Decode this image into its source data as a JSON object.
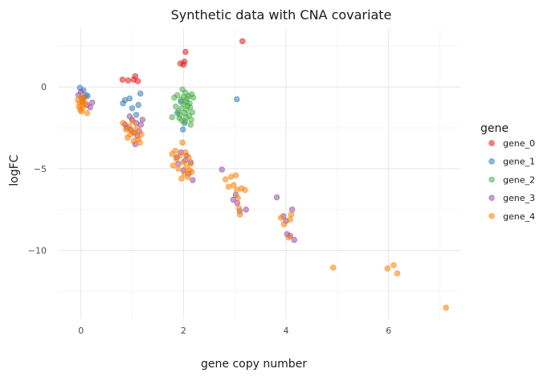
{
  "chart_data": {
    "type": "scatter",
    "title": "Synthetic data with CNA covariate",
    "xlabel": "gene copy number",
    "ylabel": "logFC",
    "xlim": [
      -0.45,
      7.4
    ],
    "ylim": [
      -14.2,
      3.6
    ],
    "x_ticks": [
      0,
      2,
      4,
      6
    ],
    "y_ticks": [
      0,
      -5,
      -10
    ],
    "grid": true,
    "legend": {
      "title": "gene",
      "position": "right"
    },
    "series": [
      {
        "name": "gene_0",
        "color": "#e41a1c",
        "points": [
          [
            0.81,
            0.45
          ],
          [
            0.92,
            0.4
          ],
          [
            1.03,
            0.45
          ],
          [
            1.06,
            0.66
          ],
          [
            1.11,
            0.36
          ],
          [
            1.94,
            1.44
          ],
          [
            2.0,
            1.37
          ],
          [
            2.02,
            1.55
          ],
          [
            2.04,
            2.15
          ],
          [
            3.15,
            2.8
          ]
        ]
      },
      {
        "name": "gene_1",
        "color": "#377eb8",
        "points": [
          [
            -0.02,
            -0.05
          ],
          [
            0.05,
            -0.2
          ],
          [
            0.1,
            -0.5
          ],
          [
            0.02,
            -0.7
          ],
          [
            0.13,
            -0.55
          ],
          [
            0.82,
            -1.0
          ],
          [
            0.86,
            -0.8
          ],
          [
            0.95,
            -0.7
          ],
          [
            1.0,
            -1.3
          ],
          [
            1.08,
            -1.7
          ],
          [
            1.12,
            -1.1
          ],
          [
            1.16,
            -0.4
          ],
          [
            1.88,
            -1.6
          ],
          [
            1.95,
            -0.9
          ],
          [
            1.99,
            -2.6
          ],
          [
            2.02,
            -2.2
          ],
          [
            3.04,
            -0.75
          ]
        ]
      },
      {
        "name": "gene_2",
        "color": "#4daf4a",
        "points": [
          [
            1.78,
            -1.85
          ],
          [
            1.82,
            -0.65
          ],
          [
            1.85,
            -1.2
          ],
          [
            1.88,
            -0.5
          ],
          [
            1.9,
            -1.5
          ],
          [
            1.92,
            -1.9
          ],
          [
            1.95,
            -0.8
          ],
          [
            1.96,
            -1.3
          ],
          [
            1.98,
            -0.15
          ],
          [
            2.0,
            -0.6
          ],
          [
            2.01,
            -1.05
          ],
          [
            2.02,
            -1.6
          ],
          [
            2.03,
            -2.1
          ],
          [
            2.04,
            -0.35
          ],
          [
            2.05,
            -0.9
          ],
          [
            2.06,
            -1.4
          ],
          [
            2.07,
            -0.7
          ],
          [
            2.08,
            -1.15
          ],
          [
            2.1,
            -0.55
          ],
          [
            2.11,
            -1.75
          ],
          [
            2.12,
            -1.0
          ],
          [
            2.13,
            -1.25
          ],
          [
            2.14,
            -2.3
          ],
          [
            2.15,
            -2.0
          ],
          [
            2.16,
            -0.45
          ],
          [
            2.17,
            -1.55
          ],
          [
            2.19,
            -0.65
          ],
          [
            1.93,
            -1.7
          ],
          [
            1.97,
            -2.05
          ],
          [
            2.05,
            -1.85
          ]
        ]
      },
      {
        "name": "gene_3",
        "color": "#984ea3",
        "points": [
          [
            -0.05,
            -0.5
          ],
          [
            0.0,
            -0.3
          ],
          [
            0.03,
            -0.9
          ],
          [
            0.06,
            -0.65
          ],
          [
            0.12,
            -1.1
          ],
          [
            0.18,
            -1.25
          ],
          [
            0.22,
            -0.95
          ],
          [
            0.86,
            -2.3
          ],
          [
            0.9,
            -2.5
          ],
          [
            0.95,
            -1.8
          ],
          [
            0.97,
            -2.6
          ],
          [
            1.0,
            -2.0
          ],
          [
            1.03,
            -2.8
          ],
          [
            1.06,
            -3.5
          ],
          [
            1.08,
            -2.2
          ],
          [
            1.1,
            -3.0
          ],
          [
            1.14,
            -2.7
          ],
          [
            1.17,
            -2.3
          ],
          [
            1.2,
            -2.0
          ],
          [
            1.87,
            -4.3
          ],
          [
            1.9,
            -4.7
          ],
          [
            1.95,
            -4.0
          ],
          [
            2.0,
            -5.1
          ],
          [
            2.03,
            -4.5
          ],
          [
            2.06,
            -4.2
          ],
          [
            2.1,
            -5.3
          ],
          [
            2.14,
            -4.6
          ],
          [
            2.18,
            -5.7
          ],
          [
            2.75,
            -5.05
          ],
          [
            2.97,
            -6.9
          ],
          [
            3.02,
            -6.6
          ],
          [
            3.05,
            -7.1
          ],
          [
            3.1,
            -7.6
          ],
          [
            3.22,
            -7.5
          ],
          [
            3.82,
            -6.75
          ],
          [
            3.95,
            -7.9
          ],
          [
            4.0,
            -8.2
          ],
          [
            4.02,
            -9.0
          ],
          [
            4.08,
            -9.1
          ],
          [
            4.12,
            -7.5
          ],
          [
            4.16,
            -9.35
          ]
        ]
      },
      {
        "name": "gene_4",
        "color": "#ff7f00",
        "points": [
          [
            -0.06,
            -0.8
          ],
          [
            -0.04,
            -1.2
          ],
          [
            -0.02,
            -1.0
          ],
          [
            -0.01,
            -1.4
          ],
          [
            0.0,
            -0.6
          ],
          [
            0.01,
            -1.5
          ],
          [
            0.02,
            -0.9
          ],
          [
            0.03,
            -1.3
          ],
          [
            0.04,
            -1.1
          ],
          [
            0.06,
            -0.7
          ],
          [
            0.08,
            -1.0
          ],
          [
            0.12,
            -1.6
          ],
          [
            0.82,
            -2.2
          ],
          [
            0.88,
            -2.6
          ],
          [
            0.91,
            -3.1
          ],
          [
            0.94,
            -2.4
          ],
          [
            0.96,
            -2.9
          ],
          [
            0.99,
            -2.7
          ],
          [
            1.01,
            -2.1
          ],
          [
            1.03,
            -3.3
          ],
          [
            1.06,
            -2.8
          ],
          [
            1.09,
            -2.5
          ],
          [
            1.12,
            -3.2
          ],
          [
            1.15,
            -3.4
          ],
          [
            1.18,
            -2.9
          ],
          [
            1.78,
            -4.1
          ],
          [
            1.8,
            -4.8
          ],
          [
            1.84,
            -3.9
          ],
          [
            1.86,
            -4.4
          ],
          [
            1.9,
            -5.0
          ],
          [
            1.93,
            -4.2
          ],
          [
            1.96,
            -5.6
          ],
          [
            1.98,
            -3.4
          ],
          [
            2.0,
            -4.6
          ],
          [
            2.02,
            -5.3
          ],
          [
            2.04,
            -4.0
          ],
          [
            2.06,
            -4.9
          ],
          [
            2.08,
            -5.5
          ],
          [
            2.1,
            -4.3
          ],
          [
            2.12,
            -5.1
          ],
          [
            2.14,
            -4.7
          ],
          [
            2.16,
            -5.2
          ],
          [
            2.82,
            -5.65
          ],
          [
            2.88,
            -6.1
          ],
          [
            2.93,
            -5.5
          ],
          [
            2.98,
            -6.0
          ],
          [
            3.02,
            -5.4
          ],
          [
            3.04,
            -6.3
          ],
          [
            3.06,
            -6.8
          ],
          [
            3.08,
            -7.4
          ],
          [
            3.1,
            -7.8
          ],
          [
            3.13,
            -6.2
          ],
          [
            3.2,
            -6.3
          ],
          [
            3.9,
            -8.0
          ],
          [
            3.96,
            -8.4
          ],
          [
            4.05,
            -9.2
          ],
          [
            4.08,
            -8.1
          ],
          [
            4.1,
            -7.8
          ],
          [
            4.92,
            -11.05
          ],
          [
            5.98,
            -11.1
          ],
          [
            6.1,
            -10.9
          ],
          [
            6.17,
            -11.4
          ],
          [
            7.12,
            -13.5
          ]
        ]
      }
    ]
  }
}
